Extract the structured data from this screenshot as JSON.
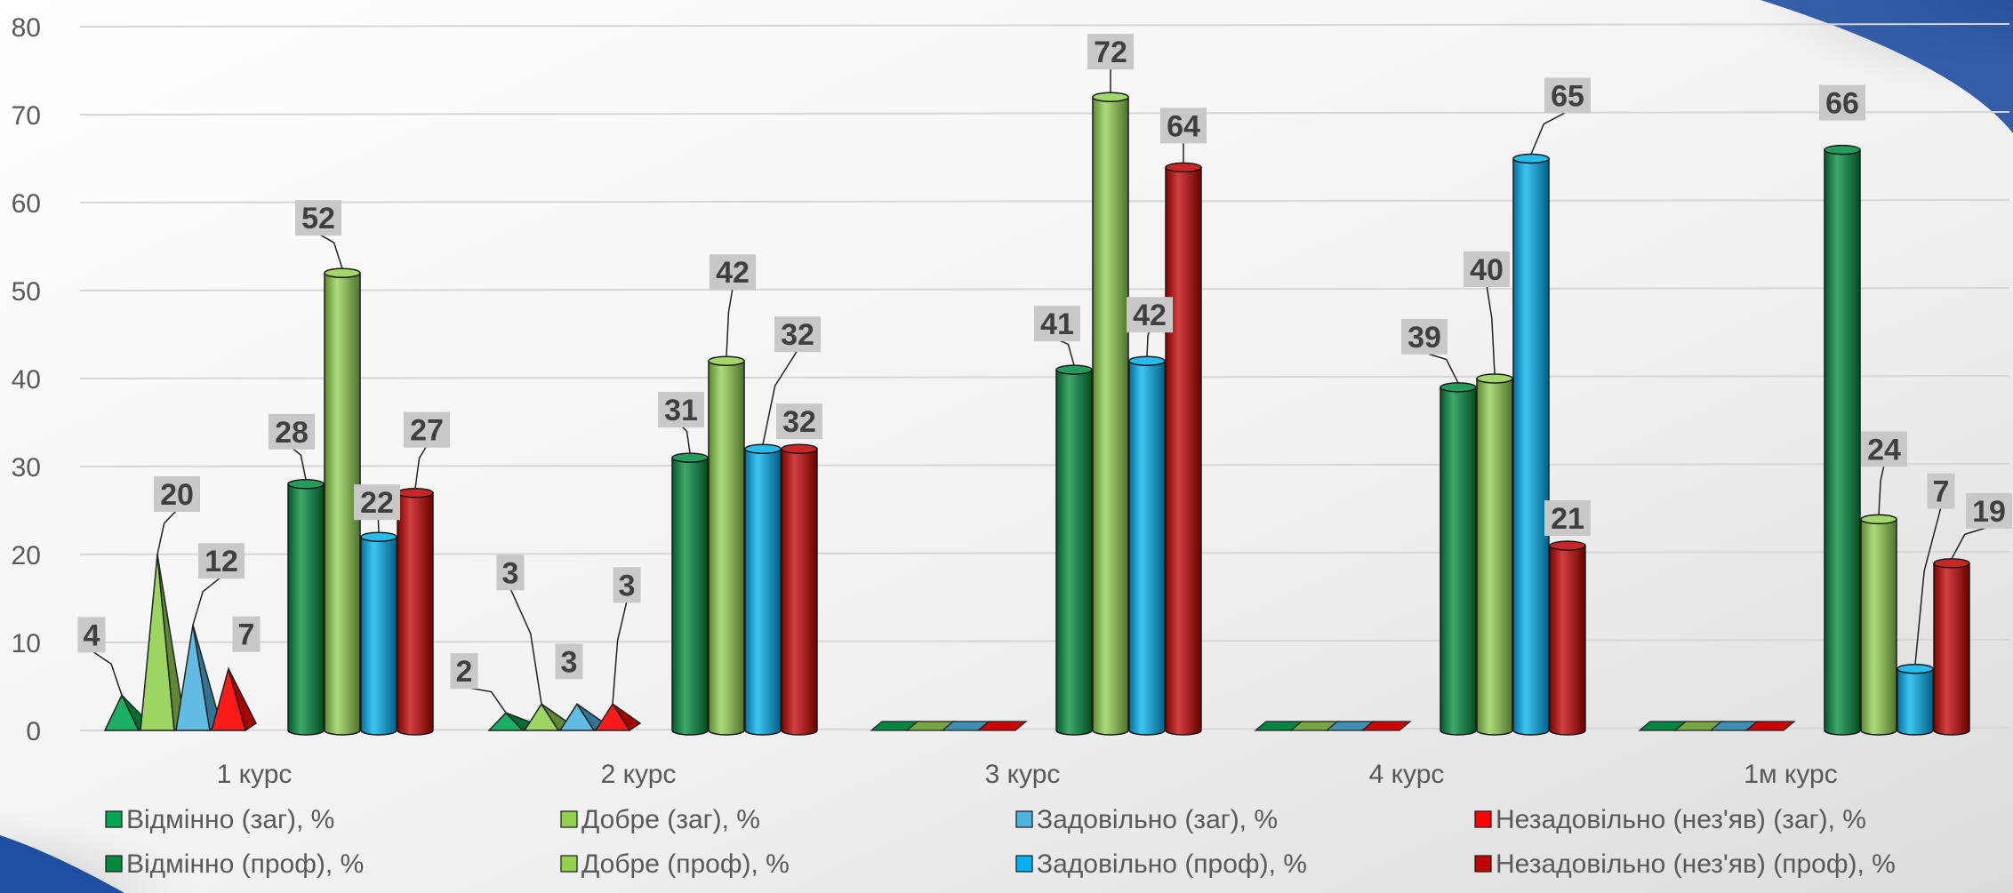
{
  "chart_data": {
    "type": "bar",
    "title": "",
    "xlabel": "",
    "ylabel": "",
    "ylim": [
      0,
      80
    ],
    "yticks": [
      0,
      10,
      20,
      30,
      40,
      50,
      60,
      70,
      80
    ],
    "grid": true,
    "legend_position": "bottom",
    "categories": [
      "1 курс",
      "2 курс",
      "3 курс",
      "4 курс",
      "1м курс"
    ],
    "series": [
      {
        "name": "Відмінно (заг), %",
        "group": "заг",
        "shape": "pyramid",
        "color": "#00a651",
        "values": [
          4,
          2,
          0,
          0,
          0
        ]
      },
      {
        "name": "Добре (заг), %",
        "group": "заг",
        "shape": "pyramid",
        "color": "#92d050",
        "values": [
          20,
          3,
          0,
          0,
          0
        ]
      },
      {
        "name": "Задовільно (заг), %",
        "group": "заг",
        "shape": "pyramid",
        "color": "#4fb3e0",
        "values": [
          12,
          3,
          0,
          0,
          0
        ]
      },
      {
        "name": "Незадовільно (нез'яв) (заг), %",
        "group": "заг",
        "shape": "pyramid",
        "color": "#ff0000",
        "values": [
          7,
          3,
          0,
          0,
          0
        ]
      },
      {
        "name": "Відмінно (проф), %",
        "group": "проф",
        "shape": "cylinder",
        "color": "#008a3e",
        "values": [
          28,
          31,
          41,
          39,
          66
        ]
      },
      {
        "name": "Добре (проф), %",
        "group": "проф",
        "shape": "cylinder",
        "color": "#92d050",
        "values": [
          52,
          42,
          72,
          40,
          24
        ]
      },
      {
        "name": "Задовільно (проф), %",
        "group": "проф",
        "shape": "cylinder",
        "color": "#00b0f0",
        "values": [
          22,
          32,
          42,
          65,
          7
        ]
      },
      {
        "name": "Незадовільно (нез'яв) (проф), %",
        "group": "проф",
        "shape": "cylinder",
        "color": "#c00000",
        "values": [
          27,
          32,
          64,
          21,
          19
        ]
      }
    ],
    "data_labels": [
      {
        "series": 0,
        "category": 0,
        "text": "4"
      },
      {
        "series": 1,
        "category": 0,
        "text": "20"
      },
      {
        "series": 2,
        "category": 0,
        "text": "12"
      },
      {
        "series": 3,
        "category": 0,
        "text": "7"
      },
      {
        "series": 4,
        "category": 0,
        "text": "28"
      },
      {
        "series": 5,
        "category": 0,
        "text": "52"
      },
      {
        "series": 6,
        "category": 0,
        "text": "22"
      },
      {
        "series": 7,
        "category": 0,
        "text": "27"
      },
      {
        "series": 0,
        "category": 1,
        "text": "2"
      },
      {
        "series": 1,
        "category": 1,
        "text": "3"
      },
      {
        "series": 2,
        "category": 1,
        "text": "3"
      },
      {
        "series": 3,
        "category": 1,
        "text": "3"
      },
      {
        "series": 4,
        "category": 1,
        "text": "31"
      },
      {
        "series": 5,
        "category": 1,
        "text": "42"
      },
      {
        "series": 6,
        "category": 1,
        "text": "32"
      },
      {
        "series": 7,
        "category": 1,
        "text": "32"
      },
      {
        "series": 4,
        "category": 2,
        "text": "41"
      },
      {
        "series": 5,
        "category": 2,
        "text": "72"
      },
      {
        "series": 6,
        "category": 2,
        "text": "42"
      },
      {
        "series": 7,
        "category": 2,
        "text": "64"
      },
      {
        "series": 4,
        "category": 3,
        "text": "39"
      },
      {
        "series": 5,
        "category": 3,
        "text": "40"
      },
      {
        "series": 6,
        "category": 3,
        "text": "65"
      },
      {
        "series": 7,
        "category": 3,
        "text": "21"
      },
      {
        "series": 4,
        "category": 4,
        "text": "66"
      },
      {
        "series": 5,
        "category": 4,
        "text": "24"
      },
      {
        "series": 6,
        "category": 4,
        "text": "7"
      },
      {
        "series": 7,
        "category": 4,
        "text": "19"
      }
    ]
  }
}
